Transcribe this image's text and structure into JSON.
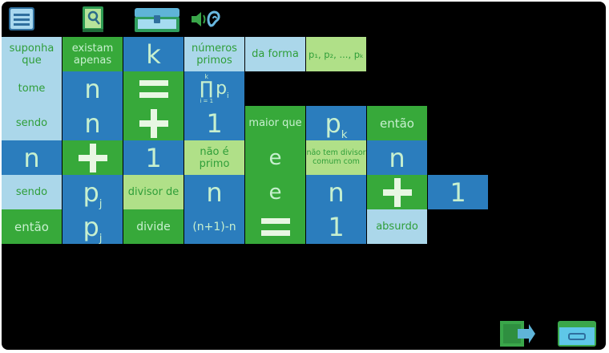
{
  "toolbar": {
    "menu_icon": "menu-icon",
    "book_icon": "book-icon",
    "chest_icon": "chest-icon",
    "speaker_icon": "speaker-ear-icon"
  },
  "tiles": {
    "r1": {
      "suponha": "suponha que",
      "existam": "existam apenas",
      "k": "k",
      "numeros": "números primos",
      "daforma": "da forma",
      "pseq": "p₁, p₂, ..., pₖ"
    },
    "r2": {
      "tome": "tome",
      "n": "n",
      "eq": "=",
      "prod_top": "k",
      "prod_sym": "∏",
      "prod_bot": "i = 1",
      "prod_p": "p",
      "prod_i": "i"
    },
    "r3": {
      "sendo": "sendo",
      "n": "n",
      "plus": "+",
      "one": "1",
      "maior": "maior que",
      "p": "p",
      "k": "k",
      "entao": "então"
    },
    "r4": {
      "n": "n",
      "plus": "+",
      "one": "1",
      "nao_primo": "não é primo",
      "e": "e",
      "nao_tem": "não tem divisor comum com",
      "n2": "n"
    },
    "r5": {
      "sendo": "sendo",
      "p": "p",
      "j": "j",
      "divisor": "divisor de",
      "n": "n",
      "e": "e",
      "n2": "n",
      "plus": "+",
      "one": "1"
    },
    "r6": {
      "entao": "então",
      "p": "p",
      "j": "j",
      "divide": "divide",
      "expr": "(n+1)-n",
      "eq": "=",
      "one": "1",
      "absurdo": "absurdo"
    }
  },
  "bottom": {
    "export_icon": "export-icon",
    "folder_icon": "folder-icon"
  }
}
